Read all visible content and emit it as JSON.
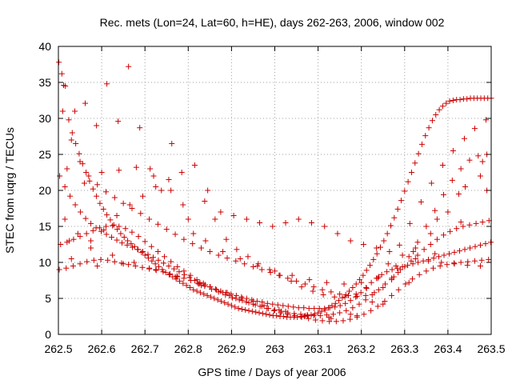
{
  "chart_data": {
    "type": "scatter",
    "title": "Rec. mets (Lon=24, Lat=60, h=HE), days 262-263, 2006, window 002",
    "xlabel": "GPS time / Days of year 2006",
    "ylabel": "STEC from uqrg / TECUs",
    "xlim": [
      262.5,
      263.5
    ],
    "ylim": [
      0,
      40
    ],
    "x_ticks": [
      "262.5",
      "262.6",
      "262.7",
      "262.8",
      "262.9",
      "263",
      "263.1",
      "263.2",
      "263.3",
      "263.4",
      "263.5"
    ],
    "y_ticks": [
      "0",
      "5",
      "10",
      "15",
      "20",
      "25",
      "30",
      "35",
      "40"
    ],
    "grid": true,
    "marker": "+",
    "color": "#cc0000",
    "series": [
      {
        "x": [
          262.501,
          262.508,
          262.516,
          262.524,
          262.532,
          262.54,
          262.548,
          262.556,
          262.564,
          262.572,
          262.58,
          262.588,
          262.596,
          262.604,
          262.612,
          262.62,
          262.628,
          262.636,
          262.644,
          262.652,
          262.66,
          262.668,
          262.676,
          262.684,
          262.692,
          262.7,
          262.708,
          262.716,
          262.724,
          262.732,
          262.74,
          262.748,
          262.756,
          262.764,
          262.772,
          262.78,
          262.788,
          262.796,
          262.804,
          262.812,
          262.82,
          262.828,
          262.836,
          262.844,
          262.852,
          262.86,
          262.868,
          262.876,
          262.884,
          262.892,
          262.9,
          262.908,
          262.916,
          262.924,
          262.932,
          262.94,
          262.948,
          262.956,
          262.964,
          262.972,
          262.98,
          262.988,
          262.996,
          263.004,
          263.012,
          263.02,
          263.028,
          263.036,
          263.044,
          263.052,
          263.06,
          263.068,
          263.076,
          263.084,
          263.092,
          263.1,
          263.108,
          263.116,
          263.124,
          263.132,
          263.14,
          263.148,
          263.156,
          263.164,
          263.172,
          263.18,
          263.188,
          263.196,
          263.204,
          263.212,
          263.22,
          263.228,
          263.236,
          263.244,
          263.252,
          263.26,
          263.268,
          263.276,
          263.284,
          263.292,
          263.3,
          263.308,
          263.316,
          263.324,
          263.332,
          263.34,
          263.348,
          263.356,
          263.364,
          263.372,
          263.38,
          263.388,
          263.396,
          263.404,
          263.412,
          263.42,
          263.428,
          263.436,
          263.444,
          263.452,
          263.46,
          263.468,
          263.476,
          263.484,
          263.492,
          263.5
        ],
        "y": [
          37.8,
          36.2,
          34.5,
          29.8,
          28.0,
          26.5,
          25.1,
          23.7,
          22.5,
          21.3,
          20.2,
          19.2,
          18.2,
          17.4,
          16.6,
          15.9,
          15.2,
          14.6,
          14.0,
          13.5,
          13.0,
          12.6,
          12.2,
          11.8,
          11.4,
          11.0,
          10.6,
          10.2,
          9.8,
          9.4,
          9.0,
          8.6,
          8.3,
          8.0,
          7.7,
          7.4,
          7.1,
          6.8,
          6.5,
          6.2,
          6.0,
          5.8,
          5.6,
          5.4,
          5.2,
          5.0,
          4.8,
          4.6,
          4.4,
          4.2,
          4.0,
          3.8,
          3.6,
          3.5,
          3.4,
          3.3,
          3.2,
          3.1,
          3.0,
          2.9,
          2.8,
          2.7,
          2.6,
          2.6,
          2.5,
          2.5,
          2.4,
          2.4,
          2.4,
          2.4,
          2.5,
          2.5,
          2.6,
          2.7,
          2.8,
          3.0,
          3.2,
          3.4,
          3.7,
          4.0,
          4.3,
          4.7,
          5.1,
          5.5,
          6.0,
          6.5,
          7.0,
          7.6,
          8.2,
          8.9,
          9.6,
          10.4,
          11.2,
          12.1,
          13.0,
          14.0,
          15.1,
          16.2,
          17.4,
          18.6,
          19.9,
          21.2,
          22.5,
          23.8,
          25.1,
          26.4,
          27.6,
          28.7,
          29.7,
          30.5,
          31.2,
          31.7,
          32.1,
          32.4,
          32.5,
          32.6,
          32.6,
          32.7,
          32.7,
          32.8,
          32.8,
          32.8,
          32.8,
          32.8,
          32.8,
          32.8
        ]
      },
      {
        "x": [
          262.503,
          262.515,
          262.527,
          262.539,
          262.551,
          262.563,
          262.575,
          262.587,
          262.599,
          262.611,
          262.623,
          262.635,
          262.647,
          262.659,
          262.671,
          262.683,
          262.695,
          262.707,
          262.719,
          262.731,
          262.743,
          262.755,
          262.767,
          262.779,
          262.791,
          262.803,
          262.815,
          262.827,
          262.839,
          262.851,
          262.863,
          262.875,
          262.887,
          262.899,
          262.911,
          262.923,
          262.935,
          262.947,
          262.959,
          262.971,
          262.983,
          262.995,
          263.007,
          263.019,
          263.031,
          263.043,
          263.055,
          263.067,
          263.079,
          263.091,
          263.103,
          263.115,
          263.127,
          263.139,
          263.151,
          263.163,
          263.175,
          263.187,
          263.199,
          263.211,
          263.223,
          263.235,
          263.247,
          263.259,
          263.271,
          263.283,
          263.295,
          263.307,
          263.319,
          263.331,
          263.343,
          263.355,
          263.367,
          263.379,
          263.391,
          263.403,
          263.415,
          263.427,
          263.439,
          263.451,
          263.463,
          263.475,
          263.487,
          263.499
        ],
        "y": [
          22.0,
          20.5,
          19.2,
          18.0,
          17.0,
          16.1,
          15.4,
          14.8,
          14.3,
          13.9,
          13.5,
          13.1,
          12.7,
          12.4,
          12.1,
          11.8,
          11.5,
          11.1,
          10.7,
          10.3,
          9.9,
          9.5,
          9.1,
          8.7,
          8.3,
          7.9,
          7.5,
          7.2,
          6.9,
          6.6,
          6.3,
          6.0,
          5.8,
          5.6,
          5.4,
          5.2,
          5.0,
          4.8,
          4.6,
          4.5,
          4.3,
          4.2,
          4.1,
          4.0,
          3.9,
          3.8,
          3.7,
          3.7,
          3.6,
          3.6,
          3.6,
          3.6,
          3.7,
          3.8,
          4.0,
          4.3,
          4.7,
          5.2,
          5.8,
          6.5,
          7.2,
          7.8,
          8.3,
          8.7,
          9.0,
          9.2,
          9.4,
          9.6,
          9.8,
          10.0,
          10.2,
          10.4,
          10.6,
          10.8,
          11.0,
          11.2,
          11.4,
          11.6,
          11.8,
          12.0,
          12.2,
          12.4,
          12.6,
          12.8
        ]
      },
      {
        "x": [
          262.505,
          262.52,
          262.535,
          262.55,
          262.565,
          262.58,
          262.595,
          262.61,
          262.625,
          262.64,
          262.655,
          262.67,
          262.685,
          262.7,
          262.715,
          262.73,
          262.745,
          262.76,
          262.775,
          262.79,
          262.805,
          262.82,
          262.835,
          262.85,
          262.865,
          262.88,
          262.895,
          262.91,
          262.925,
          262.94,
          262.955,
          262.97,
          262.985,
          263.0,
          263.015,
          263.03,
          263.045,
          263.06,
          263.075,
          263.09,
          263.105,
          263.12,
          263.135,
          263.15,
          263.165,
          263.18,
          263.195,
          263.21,
          263.225,
          263.24,
          263.255,
          263.27,
          263.285,
          263.3,
          263.315,
          263.33,
          263.345,
          263.36,
          263.375,
          263.39,
          263.405,
          263.42,
          263.435,
          263.45,
          263.465,
          263.48,
          263.495
        ],
        "y": [
          12.5,
          12.8,
          13.2,
          13.6,
          14.0,
          14.4,
          14.8,
          15.0,
          15.1,
          15.0,
          14.7,
          14.2,
          13.6,
          12.9,
          12.2,
          11.5,
          10.8,
          10.1,
          9.4,
          8.8,
          8.2,
          7.6,
          7.1,
          6.6,
          6.2,
          5.8,
          5.4,
          5.0,
          4.7,
          4.4,
          4.1,
          3.9,
          3.6,
          3.4,
          3.2,
          3.0,
          2.9,
          2.8,
          2.7,
          2.6,
          2.6,
          2.7,
          2.8,
          3.0,
          3.3,
          3.7,
          4.2,
          4.8,
          5.5,
          6.2,
          7.0,
          7.8,
          8.6,
          9.4,
          10.2,
          11.0,
          11.8,
          12.5,
          13.2,
          13.8,
          14.3,
          14.7,
          15.0,
          15.2,
          15.4,
          15.6,
          15.8
        ]
      },
      {
        "x": [
          262.502,
          262.518,
          262.534,
          262.55,
          262.566,
          262.582,
          262.598,
          262.614,
          262.63,
          262.646,
          262.662,
          262.678,
          262.694,
          262.71,
          262.726,
          262.742,
          262.758,
          262.774,
          262.79,
          262.806,
          262.822,
          262.838,
          262.854,
          262.87,
          262.886,
          262.902,
          262.918,
          262.934,
          262.95,
          262.966,
          262.982,
          262.998,
          263.014,
          263.03,
          263.046,
          263.062,
          263.078,
          263.094,
          263.11,
          263.126,
          263.142,
          263.158,
          263.174,
          263.19,
          263.206,
          263.222,
          263.238,
          263.254,
          263.27,
          263.286,
          263.302,
          263.318,
          263.334,
          263.35,
          263.366,
          263.382,
          263.398,
          263.414,
          263.43,
          263.446,
          263.462,
          263.478,
          263.494
        ],
        "y": [
          9.0,
          9.2,
          9.5,
          9.8,
          10.1,
          10.3,
          10.4,
          10.3,
          10.1,
          9.9,
          9.7,
          9.5,
          9.3,
          9.1,
          8.9,
          8.7,
          8.4,
          8.1,
          7.8,
          7.5,
          7.1,
          6.7,
          6.3,
          5.9,
          5.5,
          5.1,
          4.8,
          4.5,
          4.2,
          3.9,
          3.6,
          3.3,
          3.0,
          2.8,
          2.6,
          2.4,
          2.2,
          2.0,
          1.9,
          1.8,
          1.8,
          1.9,
          2.1,
          2.4,
          2.8,
          3.3,
          3.9,
          4.6,
          5.4,
          6.2,
          7.0,
          7.7,
          8.3,
          8.8,
          9.2,
          9.5,
          9.7,
          9.9,
          10.0,
          10.1,
          10.2,
          10.3,
          10.4
        ]
      },
      {
        "x": [
          262.51,
          262.53,
          262.55,
          262.57,
          262.59,
          262.61,
          262.63,
          262.65,
          262.67,
          262.69,
          262.71,
          262.73,
          262.75,
          262.77,
          262.79,
          262.81,
          262.83,
          262.85,
          262.87,
          262.89,
          262.91,
          262.93,
          262.95,
          262.97,
          262.99,
          263.01,
          263.03,
          263.05,
          263.07,
          263.09,
          263.11,
          263.13,
          263.15,
          263.17,
          263.19,
          263.21,
          263.23,
          263.25,
          263.27,
          263.29,
          263.31,
          263.33,
          263.35,
          263.37,
          263.39,
          263.41,
          263.43,
          263.45,
          263.47,
          263.49
        ],
        "y": [
          31.0,
          27.0,
          24.0,
          22.0,
          20.8,
          19.8,
          19.0,
          18.2,
          17.5,
          16.8,
          16.0,
          15.3,
          14.6,
          13.9,
          13.2,
          12.6,
          12.0,
          11.5,
          11.0,
          10.6,
          10.2,
          9.8,
          9.4,
          9.0,
          8.6,
          8.2,
          7.8,
          7.4,
          7.0,
          6.6,
          6.2,
          5.9,
          5.6,
          5.4,
          5.3,
          5.4,
          5.8,
          6.5,
          7.6,
          9.0,
          10.8,
          12.8,
          15.0,
          17.2,
          19.4,
          21.4,
          23.0,
          24.2,
          24.8,
          25.0
        ]
      },
      {
        "x": [
          262.515,
          262.545,
          262.575,
          262.605,
          262.635,
          262.665,
          262.695,
          262.725,
          262.755,
          262.785,
          262.815,
          262.845,
          262.875,
          262.905,
          262.935,
          262.965,
          262.995,
          263.025,
          263.055,
          263.085,
          263.115,
          263.145,
          263.175,
          263.205,
          263.235,
          263.265,
          263.295,
          263.325,
          263.355,
          263.385,
          263.415,
          263.445,
          263.475
        ],
        "y": [
          16.0,
          14.0,
          13.0,
          14.5,
          16.5,
          18.0,
          19.2,
          20.5,
          21.5,
          22.5,
          23.5,
          20.0,
          17.0,
          16.5,
          16.0,
          15.5,
          15.0,
          15.5,
          16.0,
          15.5,
          15.0,
          14.0,
          13.0,
          12.5,
          12.0,
          11.5,
          11.0,
          10.5,
          10.2,
          10.0,
          9.8,
          9.6,
          9.5
        ]
      },
      {
        "x": [
          262.512,
          262.538,
          262.562,
          262.588,
          262.612,
          262.638,
          262.662,
          262.688,
          262.712,
          262.738,
          262.762,
          262.788,
          262.812,
          262.838,
          262.862,
          262.888,
          262.912,
          262.938,
          262.962,
          262.988,
          263.012,
          263.038,
          263.062,
          263.088,
          263.112,
          263.138,
          263.162,
          263.188,
          263.212,
          263.238,
          263.262,
          263.288,
          263.312,
          263.338,
          263.362,
          263.388,
          263.412,
          263.438,
          263.462,
          263.488
        ],
        "y": [
          34.6,
          31.0,
          32.1,
          29.0,
          34.8,
          29.6,
          37.2,
          28.7,
          23.0,
          20.0,
          26.5,
          18.0,
          14.0,
          18.5,
          16.0,
          13.2,
          11.8,
          10.8,
          9.8,
          9.0,
          8.2,
          7.4,
          6.6,
          6.0,
          5.5,
          5.2,
          5.2,
          5.6,
          6.4,
          7.8,
          9.8,
          12.4,
          15.4,
          18.4,
          21.0,
          23.5,
          25.5,
          27.2,
          28.6,
          29.8
        ]
      },
      {
        "x": [
          262.52,
          262.56,
          262.6,
          262.64,
          262.68,
          262.72,
          262.76,
          262.8,
          262.84,
          262.88,
          262.92,
          262.96,
          263.0,
          263.04,
          263.08,
          263.12,
          263.16,
          263.2,
          263.24,
          263.28,
          263.32,
          263.36,
          263.4,
          263.44,
          263.48
        ],
        "y": [
          23.0,
          21.0,
          22.5,
          22.8,
          23.2,
          22.0,
          20.0,
          16.0,
          13.0,
          11.5,
          10.5,
          9.5,
          8.8,
          8.2,
          7.6,
          7.2,
          7.0,
          7.2,
          8.0,
          9.5,
          11.5,
          14.0,
          17.0,
          20.5,
          24.0
        ]
      },
      {
        "x": [
          262.525,
          262.575,
          262.625,
          262.675,
          262.725,
          262.775,
          262.825,
          262.875,
          262.925,
          262.975,
          263.025,
          263.075,
          263.125,
          263.175,
          263.225,
          263.275,
          263.325,
          263.375,
          263.425,
          263.475
        ],
        "y": [
          13.0,
          12.0,
          11.0,
          10.0,
          9.0,
          8.0,
          7.0,
          6.0,
          5.0,
          4.0,
          3.2,
          2.6,
          2.4,
          2.8,
          4.5,
          8.0,
          12.0,
          16.0,
          19.5,
          22.0
        ]
      },
      {
        "x": [
          262.53,
          262.59,
          262.65,
          262.71,
          262.77,
          262.83,
          262.89,
          262.95,
          263.01,
          263.07,
          263.13,
          263.19,
          263.25,
          263.31,
          263.37,
          263.43,
          263.49
        ],
        "y": [
          10.5,
          9.5,
          9.8,
          9.2,
          8.0,
          6.8,
          5.8,
          4.6,
          3.4,
          2.6,
          2.2,
          2.6,
          4.2,
          7.2,
          11.2,
          15.6,
          20.0
        ]
      }
    ]
  }
}
